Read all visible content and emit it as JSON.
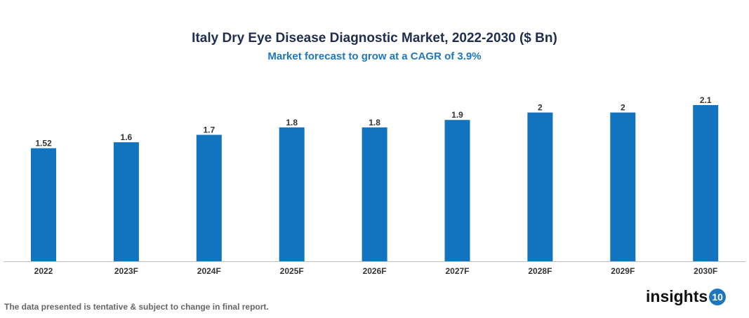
{
  "chart_data": {
    "type": "bar",
    "title": "Italy Dry Eye Disease Diagnostic Market, 2022-2030 ($ Bn)",
    "subtitle": "Market forecast to grow at a CAGR of 3.9%",
    "categories": [
      "2022",
      "2023F",
      "2024F",
      "2025F",
      "2026F",
      "2027F",
      "2028F",
      "2029F",
      "2030F"
    ],
    "values": [
      1.52,
      1.6,
      1.7,
      1.8,
      1.8,
      1.9,
      2,
      2,
      2.1
    ],
    "labels": [
      "1.52",
      "1.6",
      "1.7",
      "1.8",
      "1.8",
      "1.9",
      "2",
      "2",
      "2.1"
    ],
    "xlabel": "",
    "ylabel": "",
    "ylim": [
      0,
      2.1
    ],
    "bar_color": "#1273be",
    "grid": false
  },
  "footer": {
    "note": "The data presented is tentative & subject to change in final report."
  },
  "logo": {
    "text": "insights",
    "badge": "10"
  }
}
